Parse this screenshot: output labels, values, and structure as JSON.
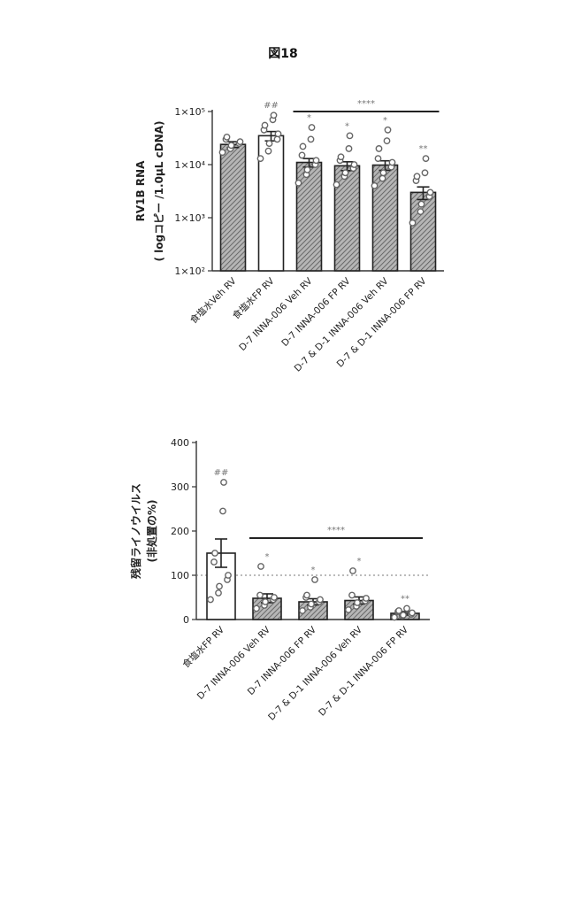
{
  "figure_title": "図18",
  "chart_data": [
    {
      "type": "bar",
      "scale": "log",
      "ylabel_line1": "RV1B RNA",
      "ylabel_line2": "( logコピー /1.0μL cDNA)",
      "yticks": [
        "1×10⁵",
        "1×10⁴",
        "1×10³",
        "1×10²"
      ],
      "ylim": [
        100,
        100000
      ],
      "categories": [
        "食塩水Veh RV",
        "食塩水FP RV",
        "D-7 INNA-006 Veh RV",
        "D-7 INNA-006 FP RV",
        "D-7 & D-1 INNA-006 Veh RV",
        "D-7 & D-1 INNA-006 FP RV"
      ],
      "values": [
        24000,
        35000,
        11000,
        9500,
        9800,
        3000
      ],
      "errors": [
        3000,
        7000,
        2000,
        1800,
        2000,
        800
      ],
      "bar_fill": [
        "hatched",
        "white",
        "hatched",
        "hatched",
        "hatched",
        "hatched"
      ],
      "points": [
        [
          17000,
          20000,
          23000,
          25000,
          27000,
          30000,
          33000
        ],
        [
          13000,
          18000,
          25000,
          30000,
          38000,
          45000,
          55000,
          70000,
          85000
        ],
        [
          4500,
          6500,
          8000,
          10000,
          12000,
          15000,
          22000,
          30000,
          50000
        ],
        [
          4200,
          6000,
          7000,
          8500,
          10000,
          12000,
          14000,
          20000,
          35000
        ],
        [
          4000,
          5500,
          7000,
          9000,
          11000,
          13000,
          20000,
          28000,
          45000
        ],
        [
          800,
          1300,
          1800,
          2500,
          3000,
          5000,
          6000,
          7000,
          13000
        ]
      ],
      "significance": "****",
      "significance_span": [
        2,
        5
      ],
      "group_marks": [
        "",
        "##",
        "*",
        "*",
        "*",
        "**"
      ]
    },
    {
      "type": "bar",
      "ylabel_line1": "残留ライノウイルス",
      "ylabel_line2": "(非処置の%)",
      "yticks": [
        "400",
        "300",
        "200",
        "100",
        "0"
      ],
      "ylim": [
        0,
        400
      ],
      "categories": [
        "食塩水FP RV",
        "D-7 INNA-006 Veh RV",
        "D-7 INNA-006 FP RV",
        "D-7 & D-1 INNA-006 Veh RV",
        "D-7 & D-1 INNA-006 FP RV"
      ],
      "values": [
        150,
        48,
        40,
        43,
        14
      ],
      "errors": [
        32,
        10,
        7,
        8,
        4
      ],
      "bar_fill": [
        "white",
        "hatched",
        "hatched",
        "hatched",
        "hatched"
      ],
      "points": [
        [
          45,
          60,
          75,
          90,
          100,
          130,
          150,
          245,
          310
        ],
        [
          25,
          32,
          40,
          45,
          50,
          55,
          120
        ],
        [
          20,
          28,
          35,
          40,
          45,
          50,
          55,
          90
        ],
        [
          22,
          30,
          38,
          42,
          48,
          55,
          110
        ],
        [
          5,
          8,
          10,
          12,
          15,
          18,
          20,
          25
        ]
      ],
      "reference_line": 100,
      "significance": "****",
      "significance_span": [
        1,
        4
      ],
      "group_marks": [
        "##",
        "*",
        "*",
        "*",
        "**"
      ]
    }
  ]
}
